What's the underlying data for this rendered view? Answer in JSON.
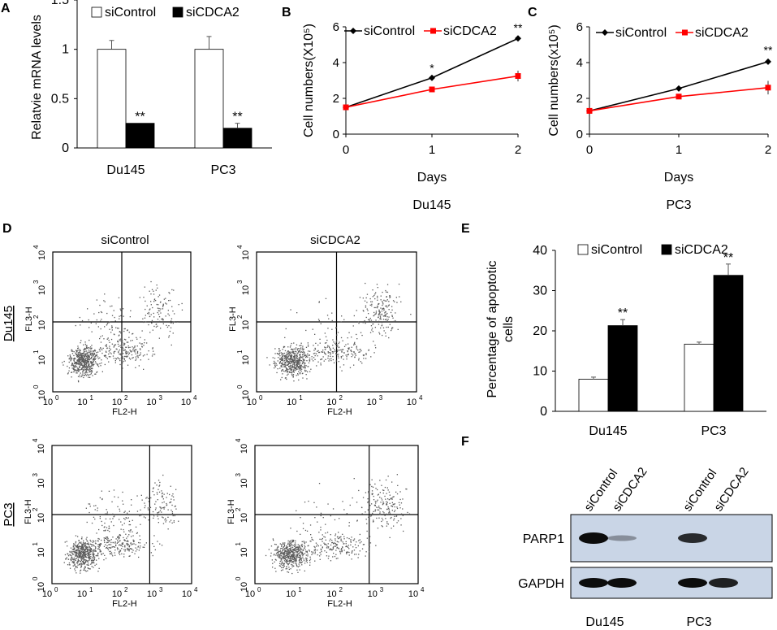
{
  "panel_letters": {
    "a": "A",
    "b": "B",
    "c": "C",
    "d": "D",
    "e": "E",
    "f": "F"
  },
  "colors": {
    "black": "#000000",
    "red": "#ff0000",
    "white": "#ffffff",
    "dot": "#5a5a5a",
    "blot_bg": "#c9d5e6",
    "band": "#0c0c0c"
  },
  "chart_data": [
    {
      "id": "A",
      "type": "bar",
      "ylabel": "Relatvie mRNA  levels",
      "xlabel": "",
      "ylim": [
        0,
        1.5
      ],
      "yticks": [
        0,
        0.5,
        1,
        1.5
      ],
      "categories": [
        "Du145",
        "PC3"
      ],
      "series": [
        {
          "name": "siControl",
          "values": [
            1.0,
            1.0
          ],
          "errors": [
            0.09,
            0.13
          ],
          "fill": "#ffffff"
        },
        {
          "name": "siCDCA2",
          "values": [
            0.25,
            0.2
          ],
          "errors": [
            0.0,
            0.05
          ],
          "fill": "#000000"
        }
      ],
      "annotations": [
        "**",
        "**"
      ],
      "legend": "top"
    },
    {
      "id": "B",
      "type": "line",
      "ylabel": "Cell numbers(X10⁵)",
      "xlabel": "Days",
      "caption": "Du145",
      "x": [
        0,
        1,
        2
      ],
      "ylim": [
        0,
        6
      ],
      "yticks": [
        0,
        2,
        4,
        6
      ],
      "series": [
        {
          "name": "siControl",
          "values": [
            1.5,
            3.15,
            5.35
          ],
          "errors": [
            0,
            0.05,
            0.1
          ],
          "color": "#000000"
        },
        {
          "name": "siCDCA2",
          "values": [
            1.5,
            2.5,
            3.25
          ],
          "errors": [
            0,
            0.08,
            0.3
          ],
          "color": "#ff0000"
        }
      ],
      "annotations": [
        "",
        "*",
        "**"
      ],
      "legend": "top"
    },
    {
      "id": "C",
      "type": "line",
      "ylabel": "Cell numbers(x10⁵)",
      "xlabel": "Days",
      "caption": "PC3",
      "x": [
        0,
        1,
        2
      ],
      "ylim": [
        0,
        6
      ],
      "yticks": [
        0,
        2,
        4,
        6
      ],
      "series": [
        {
          "name": "siControl",
          "values": [
            1.3,
            2.55,
            4.05
          ],
          "errors": [
            0,
            0.05,
            0.15
          ],
          "color": "#000000"
        },
        {
          "name": "siCDCA2",
          "values": [
            1.3,
            2.1,
            2.6
          ],
          "errors": [
            0,
            0.08,
            0.38
          ],
          "color": "#ff0000"
        }
      ],
      "annotations": [
        "",
        "",
        "**"
      ],
      "legend": "top"
    },
    {
      "id": "E",
      "type": "bar",
      "ylabel": "Percentage of apoptotic cells",
      "ylabel_lines": [
        "Percentage of apoptotic",
        "cells"
      ],
      "xlabel": "",
      "ylim": [
        0,
        40
      ],
      "yticks": [
        0,
        10,
        20,
        30,
        40
      ],
      "categories": [
        "Du145",
        "PC3"
      ],
      "series": [
        {
          "name": "siControl",
          "values": [
            8,
            16.7
          ],
          "errors": [
            0.5,
            0.5
          ],
          "fill": "#ffffff"
        },
        {
          "name": "siCDCA2",
          "values": [
            21.3,
            33.8
          ],
          "errors": [
            1.5,
            2.8
          ],
          "fill": "#000000"
        }
      ],
      "annotations": [
        "**",
        "**"
      ],
      "legend": "top"
    }
  ],
  "flow": {
    "col_titles": [
      "siControl",
      "siCDCA2"
    ],
    "row_labels": [
      "Du145",
      "PC3"
    ],
    "x_axis_label": "FL2-H",
    "y_axis_label": "FL3-H",
    "tick_bases": [
      "10",
      "10",
      "10",
      "10",
      "10"
    ],
    "tick_exps": [
      "0",
      "1",
      "2",
      "3",
      "4"
    ],
    "gates": [
      [
        0.5,
        0.5
      ],
      [
        0.5,
        0.5
      ],
      [
        0.7,
        0.5
      ],
      [
        0.7,
        0.5
      ]
    ]
  },
  "blot": {
    "lane_labels": [
      "siControl",
      "siCDCA2",
      "siControl",
      "siCDCA2"
    ],
    "rows": [
      "PARP1",
      "GAPDH"
    ],
    "groups": [
      "Du145",
      "PC3"
    ],
    "band_intensity": {
      "PARP1": [
        1.0,
        0.35,
        0.85,
        0.0
      ],
      "GAPDH": [
        1.0,
        1.0,
        1.0,
        0.9
      ]
    }
  }
}
